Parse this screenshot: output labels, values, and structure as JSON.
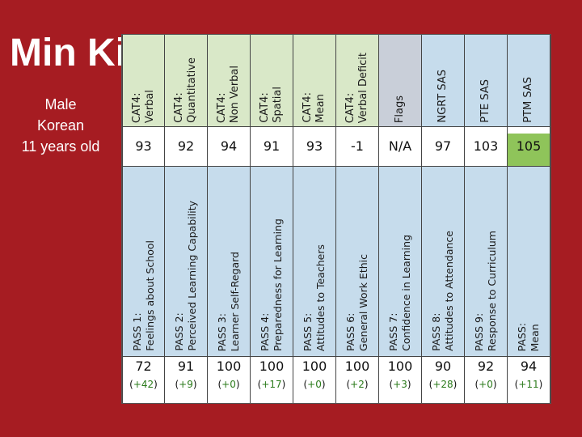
{
  "student": {
    "name": "Min Ki",
    "gender": "Male",
    "ethnicity": "Korean",
    "age": "11 years old"
  },
  "colors": {
    "background": "#a61c22",
    "cat4_header": "#d9e8c8",
    "flags_header": "#c9cfd9",
    "sas_header": "#c6dcec",
    "ptm_value_highlight": "#8fc45a"
  },
  "columns": [
    {
      "header": "CAT4:\nVerbal",
      "value": "93",
      "pass_header": "PASS 1:\nFeelings about School",
      "pass_value": "72",
      "pass_change": "+42"
    },
    {
      "header": "CAT4:\nQuantitative",
      "value": "92",
      "pass_header": "PASS 2:\nPerceived Learning Capability",
      "pass_value": "91",
      "pass_change": "+9"
    },
    {
      "header": "CAT4:\nNon Verbal",
      "value": "94",
      "pass_header": "PASS 3:\nLearner Self-Regard",
      "pass_value": "100",
      "pass_change": "+0"
    },
    {
      "header": "CAT4:\nSpatial",
      "value": "91",
      "pass_header": "PASS 4:\nPreparedness for Learning",
      "pass_value": "100",
      "pass_change": "+17"
    },
    {
      "header": "CAT4:\nMean",
      "value": "93",
      "pass_header": "PASS 5:\nAttitudes to Teachers",
      "pass_value": "100",
      "pass_change": "+0"
    },
    {
      "header": "CAT4:\nVerbal Deficit",
      "value": "-1",
      "pass_header": "PASS 6:\nGeneral Work Ethic",
      "pass_value": "100",
      "pass_change": "+2"
    },
    {
      "header": "Flags",
      "value": "N/A",
      "pass_header": "PASS 7:\nConfidence in Learning",
      "pass_value": "100",
      "pass_change": "+3"
    },
    {
      "header": "NGRT SAS",
      "value": "97",
      "pass_header": "PASS 8:\nAttitudes to Attendance",
      "pass_value": "90",
      "pass_change": "+28"
    },
    {
      "header": "PTE SAS",
      "value": "103",
      "pass_header": "PASS 9:\nResponse to Curriculum",
      "pass_value": "92",
      "pass_change": "+0"
    },
    {
      "header": "PTM SAS",
      "value": "105",
      "pass_header": "PASS:\nMean",
      "pass_value": "94",
      "pass_change": "+11"
    }
  ]
}
